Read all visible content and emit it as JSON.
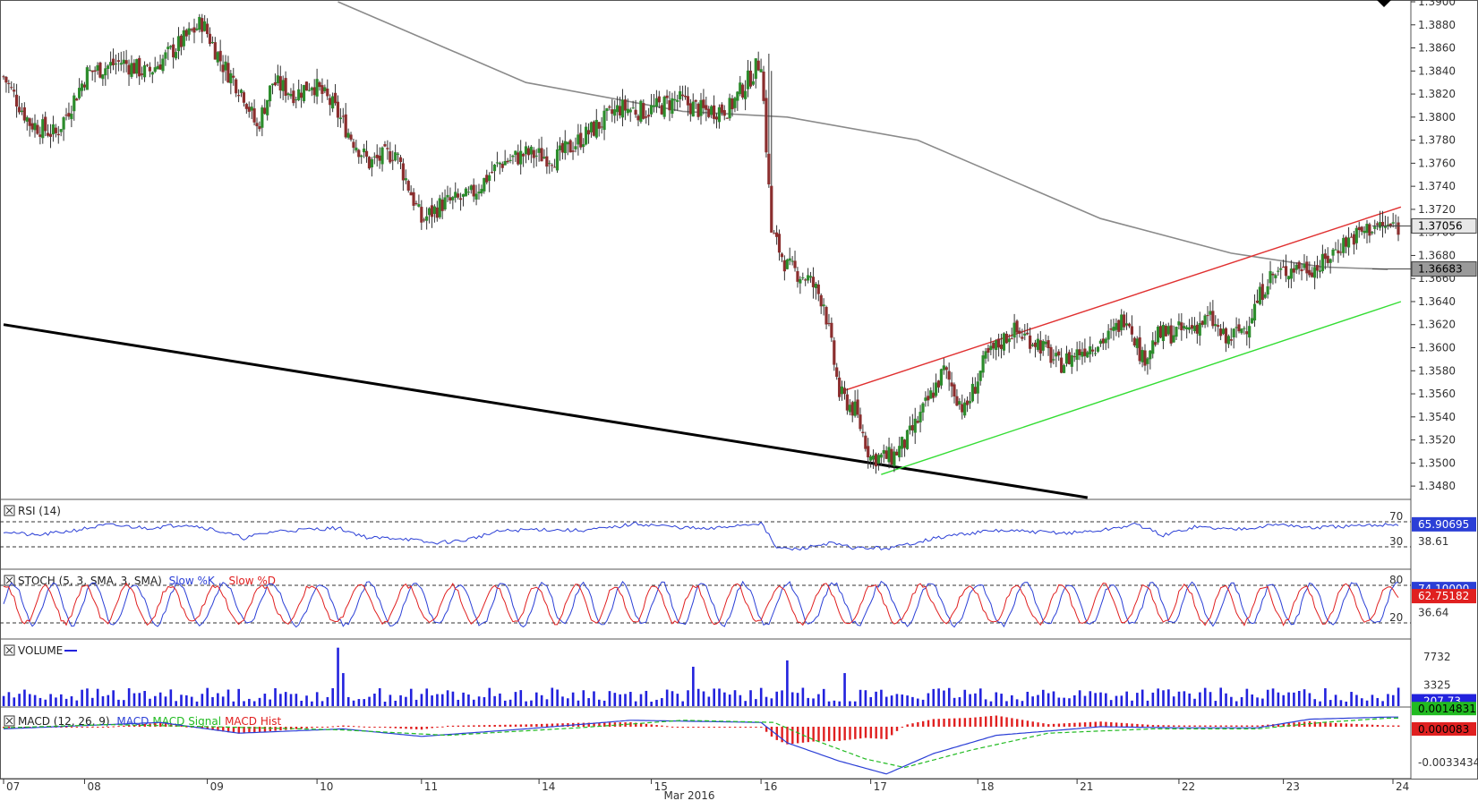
{
  "colors": {
    "bull": "#2c8c2c",
    "bear": "#8b2e2e",
    "wick": "#333333",
    "sma": "#8a8a8a",
    "trend_black": "#000000",
    "channel_upper": "#e03030",
    "channel_lower": "#33dd33",
    "rsi": "#2b3fd6",
    "stoch_k": "#2b3fd6",
    "stoch_d": "#e02020",
    "volume": "#2222dd",
    "macd": "#2b3fd6",
    "macd_signal": "#22bb22",
    "macd_hist": "#e02020",
    "grid": "#333333",
    "border": "#555555"
  },
  "chart_data": [
    {
      "type": "candlestick",
      "title": "",
      "xlabel": "Mar 2016",
      "x_ticks": [
        "07",
        "08",
        "09",
        "10",
        "11",
        "14",
        "15",
        "16",
        "17",
        "18",
        "21",
        "22",
        "23",
        "24"
      ],
      "ylim": [
        1.347,
        1.39
      ],
      "y_ticks": [
        "1.3900",
        "1.3880",
        "1.3860",
        "1.3840",
        "1.3820",
        "1.3800",
        "1.3780",
        "1.3760",
        "1.3740",
        "1.3720",
        "1.3700",
        "1.3680",
        "1.3660",
        "1.3640",
        "1.3620",
        "1.3600",
        "1.3580",
        "1.3560",
        "1.3540",
        "1.3520",
        "1.3500",
        "1.3480"
      ],
      "last_price": "1.37056",
      "sma_value": "1.36683",
      "close_path": [
        {
          "x": 0,
          "y": 1.3835
        },
        {
          "x": 10,
          "y": 1.3795
        },
        {
          "x": 20,
          "y": 1.3785
        },
        {
          "x": 32,
          "y": 1.3838
        },
        {
          "x": 45,
          "y": 1.3848
        },
        {
          "x": 55,
          "y": 1.3838
        },
        {
          "x": 62,
          "y": 1.3852
        },
        {
          "x": 70,
          "y": 1.3869
        },
        {
          "x": 76,
          "y": 1.3882
        },
        {
          "x": 84,
          "y": 1.3845
        },
        {
          "x": 92,
          "y": 1.382
        },
        {
          "x": 97,
          "y": 1.379
        },
        {
          "x": 103,
          "y": 1.383
        },
        {
          "x": 112,
          "y": 1.382
        },
        {
          "x": 118,
          "y": 1.383
        },
        {
          "x": 126,
          "y": 1.381
        },
        {
          "x": 133,
          "y": 1.3783
        },
        {
          "x": 140,
          "y": 1.376
        },
        {
          "x": 150,
          "y": 1.377
        },
        {
          "x": 160,
          "y": 1.371
        },
        {
          "x": 168,
          "y": 1.3725
        },
        {
          "x": 178,
          "y": 1.373
        },
        {
          "x": 190,
          "y": 1.376
        },
        {
          "x": 200,
          "y": 1.3768
        },
        {
          "x": 212,
          "y": 1.3765
        },
        {
          "x": 226,
          "y": 1.379
        },
        {
          "x": 236,
          "y": 1.3808
        },
        {
          "x": 246,
          "y": 1.3805
        },
        {
          "x": 258,
          "y": 1.3815
        },
        {
          "x": 268,
          "y": 1.3805
        },
        {
          "x": 278,
          "y": 1.3808
        },
        {
          "x": 286,
          "y": 1.3835
        },
        {
          "x": 290,
          "y": 1.385
        },
        {
          "x": 294,
          "y": 1.37
        },
        {
          "x": 300,
          "y": 1.367
        },
        {
          "x": 308,
          "y": 1.366
        },
        {
          "x": 314,
          "y": 1.364
        },
        {
          "x": 320,
          "y": 1.356
        },
        {
          "x": 326,
          "y": 1.3545
        },
        {
          "x": 332,
          "y": 1.3505
        },
        {
          "x": 340,
          "y": 1.3505
        },
        {
          "x": 346,
          "y": 1.352
        },
        {
          "x": 352,
          "y": 1.3545
        },
        {
          "x": 360,
          "y": 1.358
        },
        {
          "x": 368,
          "y": 1.3545
        },
        {
          "x": 376,
          "y": 1.359
        },
        {
          "x": 386,
          "y": 1.3615
        },
        {
          "x": 396,
          "y": 1.3605
        },
        {
          "x": 404,
          "y": 1.3585
        },
        {
          "x": 414,
          "y": 1.36
        },
        {
          "x": 424,
          "y": 1.361
        },
        {
          "x": 430,
          "y": 1.363
        },
        {
          "x": 436,
          "y": 1.359
        },
        {
          "x": 442,
          "y": 1.361
        },
        {
          "x": 452,
          "y": 1.3615
        },
        {
          "x": 462,
          "y": 1.3625
        },
        {
          "x": 468,
          "y": 1.3605
        },
        {
          "x": 476,
          "y": 1.362
        },
        {
          "x": 484,
          "y": 1.366
        },
        {
          "x": 494,
          "y": 1.367
        },
        {
          "x": 504,
          "y": 1.367
        },
        {
          "x": 512,
          "y": 1.369
        },
        {
          "x": 520,
          "y": 1.37
        },
        {
          "x": 524,
          "y": 1.3705
        }
      ],
      "sma_path": [
        {
          "x": 128,
          "y": 1.39
        },
        {
          "x": 200,
          "y": 1.383
        },
        {
          "x": 260,
          "y": 1.3805
        },
        {
          "x": 300,
          "y": 1.38
        },
        {
          "x": 350,
          "y": 1.378
        },
        {
          "x": 420,
          "y": 1.3712
        },
        {
          "x": 470,
          "y": 1.3682
        },
        {
          "x": 505,
          "y": 1.367
        },
        {
          "x": 530,
          "y": 1.3668
        }
      ],
      "trendline_black": [
        {
          "x": 0,
          "y": 1.362
        },
        {
          "x": 415,
          "y": 1.347
        }
      ],
      "channel_upper": [
        {
          "x": 322,
          "y": 1.3563
        },
        {
          "x": 535,
          "y": 1.3722
        }
      ],
      "channel_lower": [
        {
          "x": 336,
          "y": 1.349
        },
        {
          "x": 535,
          "y": 1.364
        }
      ]
    },
    {
      "type": "line",
      "title": "RSI (14)",
      "ylim": [
        0,
        100
      ],
      "levels": [
        "70",
        "30"
      ],
      "y_ticks": [
        "38.61"
      ],
      "current_value": "65.90695",
      "series": [
        {
          "values": [
            {
              "x": 0,
              "y": 55
            },
            {
              "x": 12,
              "y": 48
            },
            {
              "x": 25,
              "y": 55
            },
            {
              "x": 40,
              "y": 65
            },
            {
              "x": 55,
              "y": 60
            },
            {
              "x": 70,
              "y": 66
            },
            {
              "x": 80,
              "y": 58
            },
            {
              "x": 92,
              "y": 44
            },
            {
              "x": 104,
              "y": 55
            },
            {
              "x": 118,
              "y": 58
            },
            {
              "x": 128,
              "y": 60
            },
            {
              "x": 140,
              "y": 44
            },
            {
              "x": 152,
              "y": 44
            },
            {
              "x": 164,
              "y": 36
            },
            {
              "x": 176,
              "y": 40
            },
            {
              "x": 190,
              "y": 55
            },
            {
              "x": 204,
              "y": 58
            },
            {
              "x": 220,
              "y": 56
            },
            {
              "x": 232,
              "y": 60
            },
            {
              "x": 242,
              "y": 67
            },
            {
              "x": 256,
              "y": 62
            },
            {
              "x": 270,
              "y": 58
            },
            {
              "x": 280,
              "y": 64
            },
            {
              "x": 290,
              "y": 68
            },
            {
              "x": 296,
              "y": 28
            },
            {
              "x": 304,
              "y": 26
            },
            {
              "x": 316,
              "y": 36
            },
            {
              "x": 326,
              "y": 28
            },
            {
              "x": 340,
              "y": 28
            },
            {
              "x": 352,
              "y": 40
            },
            {
              "x": 366,
              "y": 50
            },
            {
              "x": 380,
              "y": 56
            },
            {
              "x": 394,
              "y": 54
            },
            {
              "x": 408,
              "y": 52
            },
            {
              "x": 420,
              "y": 56
            },
            {
              "x": 434,
              "y": 66
            },
            {
              "x": 444,
              "y": 48
            },
            {
              "x": 456,
              "y": 62
            },
            {
              "x": 470,
              "y": 58
            },
            {
              "x": 480,
              "y": 62
            },
            {
              "x": 490,
              "y": 66
            },
            {
              "x": 500,
              "y": 60
            },
            {
              "x": 510,
              "y": 62
            },
            {
              "x": 520,
              "y": 63
            },
            {
              "x": 530,
              "y": 66
            }
          ]
        }
      ]
    },
    {
      "type": "line",
      "title": "STOCH (5, 3, SMA, 3, SMA)",
      "legend": [
        "Slow %K",
        "Slow %D"
      ],
      "ylim": [
        0,
        100
      ],
      "levels": [
        "80",
        "20"
      ],
      "y_ticks": [
        "36.64"
      ],
      "current_values": [
        "74.10000",
        "62.75182"
      ],
      "series": [
        {
          "name": "Slow %K",
          "period": 10,
          "amplitude": 33,
          "phase": 0
        },
        {
          "name": "Slow %D",
          "period": 10,
          "amplitude": 30,
          "phase": 1.2
        }
      ]
    },
    {
      "type": "bar",
      "title": "VOLUME",
      "ylim": [
        0,
        10000
      ],
      "y_ticks": [
        "7732",
        "3325"
      ],
      "current_value": "207.73",
      "spikes": [
        {
          "x": 128,
          "y": 9200
        },
        {
          "x": 130,
          "y": 5200
        },
        {
          "x": 264,
          "y": 6200
        },
        {
          "x": 300,
          "y": 7200
        },
        {
          "x": 322,
          "y": 5200
        }
      ],
      "baseline": 2000
    },
    {
      "type": "line",
      "title": "MACD (12, 26, 9)",
      "legend": [
        "MACD",
        "MACD Signal",
        "MACD Hist"
      ],
      "y_ticks": [
        "-0.0033434"
      ],
      "current_values": [
        "0.0014831",
        "0.000083"
      ],
      "ylim": [
        -0.0045,
        0.0015
      ],
      "series": [
        {
          "name": "MACD",
          "values": [
            {
              "x": 0,
              "y": -0.0002
            },
            {
              "x": 30,
              "y": 0.0001
            },
            {
              "x": 60,
              "y": 0.0004
            },
            {
              "x": 90,
              "y": -0.0006
            },
            {
              "x": 130,
              "y": -0.0002
            },
            {
              "x": 160,
              "y": -0.0009
            },
            {
              "x": 200,
              "y": -0.0002
            },
            {
              "x": 240,
              "y": 0.0006
            },
            {
              "x": 290,
              "y": 0.0004
            },
            {
              "x": 300,
              "y": -0.0015
            },
            {
              "x": 320,
              "y": -0.0032
            },
            {
              "x": 338,
              "y": -0.0044
            },
            {
              "x": 356,
              "y": -0.0025
            },
            {
              "x": 380,
              "y": -0.0008
            },
            {
              "x": 420,
              "y": 0.0
            },
            {
              "x": 450,
              "y": -0.0001
            },
            {
              "x": 480,
              "y": -0.0001
            },
            {
              "x": 500,
              "y": 0.0007
            },
            {
              "x": 530,
              "y": 0.0009
            }
          ]
        },
        {
          "name": "MACD Signal",
          "values": [
            {
              "x": 0,
              "y": -0.0001
            },
            {
              "x": 40,
              "y": 0.0002
            },
            {
              "x": 80,
              "y": 0.0
            },
            {
              "x": 130,
              "y": -0.0003
            },
            {
              "x": 170,
              "y": -0.0008
            },
            {
              "x": 220,
              "y": -0.0001
            },
            {
              "x": 260,
              "y": 0.0006
            },
            {
              "x": 295,
              "y": 0.0004
            },
            {
              "x": 310,
              "y": -0.0012
            },
            {
              "x": 330,
              "y": -0.003
            },
            {
              "x": 345,
              "y": -0.0038
            },
            {
              "x": 370,
              "y": -0.0022
            },
            {
              "x": 400,
              "y": -0.0006
            },
            {
              "x": 440,
              "y": -0.0002
            },
            {
              "x": 480,
              "y": -0.0002
            },
            {
              "x": 505,
              "y": 0.0004
            },
            {
              "x": 530,
              "y": 0.0008
            }
          ]
        }
      ]
    }
  ]
}
